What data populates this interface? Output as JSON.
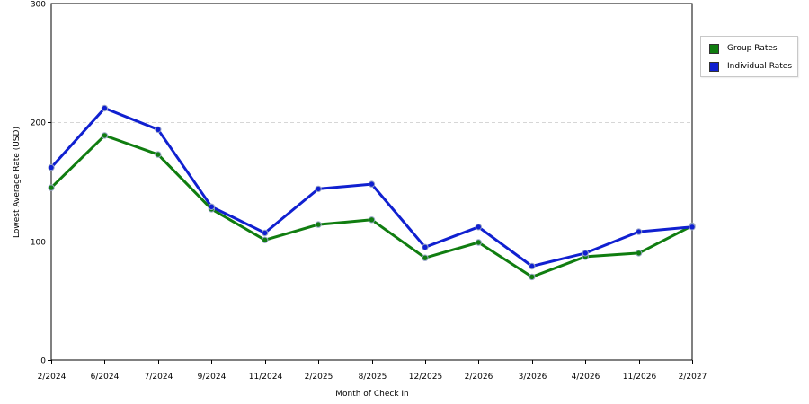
{
  "chart_data": {
    "type": "line",
    "title": "",
    "xlabel": "Month of Check In",
    "ylabel": "Lowest Average Rate (USD)",
    "ylim": [
      0,
      300
    ],
    "yticks": [
      0,
      100,
      200,
      300
    ],
    "grid": true,
    "legend_position": "right",
    "categories": [
      "2/2024",
      "6/2024",
      "7/2024",
      "9/2024",
      "11/2024",
      "2/2025",
      "8/2025",
      "12/2025",
      "2/2026",
      "3/2026",
      "4/2026",
      "11/2026",
      "2/2027"
    ],
    "series": [
      {
        "name": "Group Rates",
        "color": "#107d10",
        "values": [
          145,
          189,
          173,
          127,
          101,
          114,
          118,
          86,
          99,
          70,
          87,
          90,
          113
        ]
      },
      {
        "name": "Individual Rates",
        "color": "#1020d0",
        "values": [
          162,
          212,
          194,
          129,
          107,
          144,
          148,
          95,
          112,
          79,
          90,
          108,
          112
        ]
      }
    ]
  }
}
